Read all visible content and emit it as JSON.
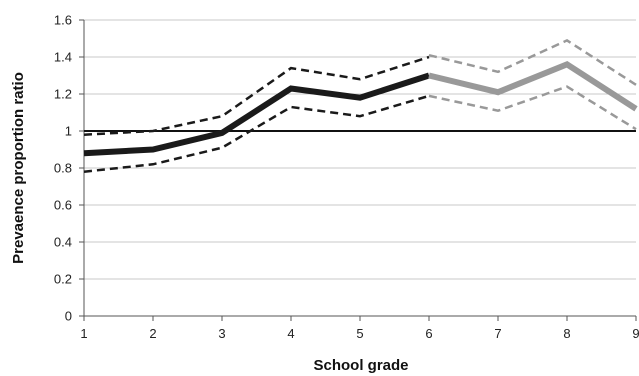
{
  "chart_data": {
    "type": "line",
    "title": "",
    "xlabel": "School grade",
    "ylabel": "Prevaence proportion ratio",
    "x": [
      1,
      2,
      3,
      4,
      5,
      6,
      7,
      8,
      9
    ],
    "xlim": [
      1,
      9
    ],
    "ylim": [
      0,
      1.6
    ],
    "x_ticks": [
      "1",
      "2",
      "3",
      "4",
      "5",
      "6",
      "7",
      "8",
      "9"
    ],
    "y_ticks": [
      "0",
      "0.2",
      "0.4",
      "0.6",
      "0.8",
      "1",
      "1.2",
      "1.4",
      "1.6"
    ],
    "grid": "horizontal",
    "legend": "none",
    "reference_line": {
      "y": 1,
      "color": "#111111"
    },
    "series": [
      {
        "role": "estimate",
        "x": [
          1,
          2,
          3,
          4,
          5,
          6
        ],
        "values": [
          0.88,
          0.9,
          0.99,
          1.23,
          1.18,
          1.3
        ],
        "color": "#1a1a1a",
        "style": "solid-thick"
      },
      {
        "role": "upper-ci",
        "x": [
          1,
          2,
          3,
          4,
          5,
          6
        ],
        "values": [
          0.98,
          1.0,
          1.08,
          1.34,
          1.28,
          1.4
        ],
        "color": "#1a1a1a",
        "style": "dashed"
      },
      {
        "role": "lower-ci",
        "x": [
          1,
          2,
          3,
          4,
          5,
          6
        ],
        "values": [
          0.78,
          0.82,
          0.91,
          1.13,
          1.08,
          1.19
        ],
        "color": "#1a1a1a",
        "style": "dashed"
      },
      {
        "role": "estimate",
        "x": [
          6,
          7,
          8,
          9
        ],
        "values": [
          1.3,
          1.21,
          1.36,
          1.12
        ],
        "color": "#999999",
        "style": "solid-thick"
      },
      {
        "role": "upper-ci",
        "x": [
          6,
          7,
          8,
          9
        ],
        "values": [
          1.41,
          1.32,
          1.49,
          1.25
        ],
        "color": "#999999",
        "style": "dashed"
      },
      {
        "role": "lower-ci",
        "x": [
          6,
          7,
          8,
          9
        ],
        "values": [
          1.19,
          1.11,
          1.24,
          1.01
        ],
        "color": "#999999",
        "style": "dashed"
      }
    ]
  }
}
